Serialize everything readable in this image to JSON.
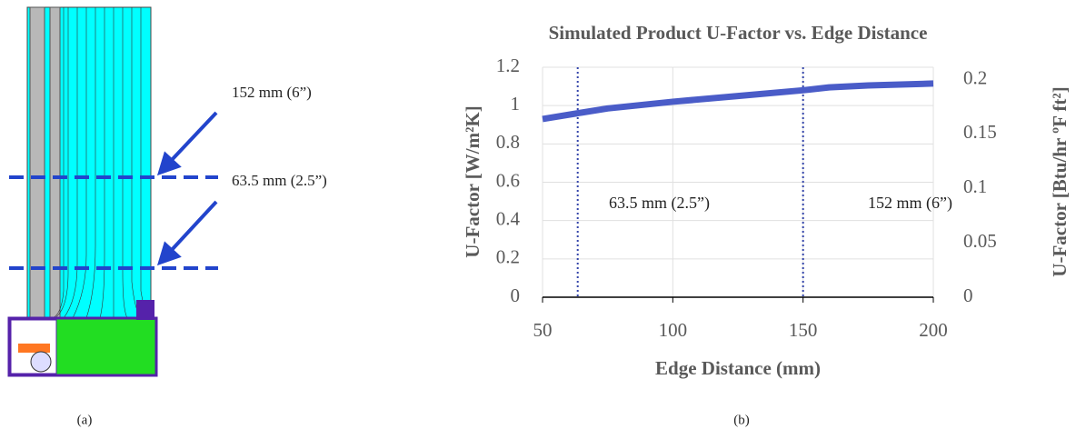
{
  "panel_a": {
    "labels": [
      "152 mm (6”)",
      "63.5 mm (2.5”)"
    ],
    "caption": "(a)"
  },
  "chart_data": {
    "type": "line",
    "title": "Simulated Product U-Factor vs. Edge Distance",
    "xlabel": "Edge Distance (mm)",
    "ylabel": "U-Factor [W/m²K]",
    "y2label": "U-Factor [Btu/hr ºF ft²]",
    "x": [
      50,
      63.5,
      75,
      100,
      125,
      150,
      160,
      175,
      200
    ],
    "values": [
      0.93,
      0.96,
      0.985,
      1.02,
      1.05,
      1.08,
      1.095,
      1.105,
      1.115
    ],
    "color": "#4a5cc8",
    "xlim": [
      50,
      200
    ],
    "xticks": [
      50,
      100,
      150,
      200
    ],
    "ylim": [
      0,
      1.2
    ],
    "yticks": [
      0,
      0.2,
      0.4,
      0.6,
      0.8,
      1,
      1.2
    ],
    "y2lim": [
      0,
      0.2113
    ],
    "y2ticks": [
      0,
      0.05,
      0.1,
      0.15,
      0.2
    ],
    "grid": true,
    "vlines": [
      63.5,
      150
    ],
    "vline_color": "#3344aa",
    "annotations": [
      "63.5 mm (2.5”)",
      "152 mm (6”)"
    ],
    "caption": "(b)"
  }
}
